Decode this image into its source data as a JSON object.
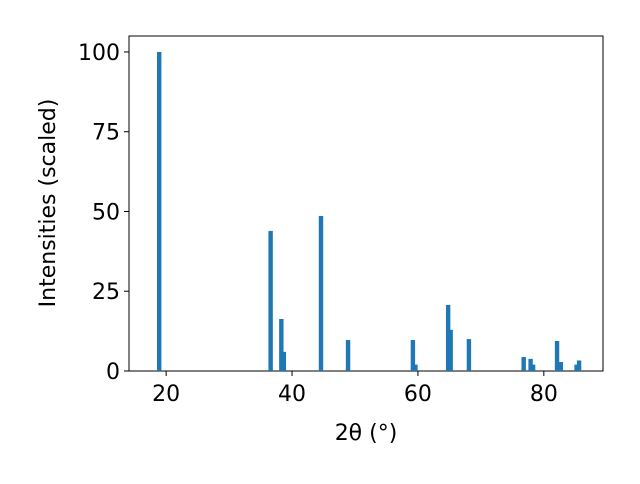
{
  "chart_data": {
    "type": "bar",
    "x": [
      18.9,
      36.6,
      38.3,
      38.7,
      44.6,
      48.9,
      59.2,
      59.6,
      64.8,
      65.2,
      68.1,
      76.8,
      77.9,
      78.3,
      82.1,
      82.7,
      85.2,
      85.6
    ],
    "values": [
      100,
      43.9,
      16.3,
      6,
      48.6,
      9.7,
      9.7,
      2,
      20.7,
      12.9,
      10,
      4.4,
      3.8,
      2,
      9.4,
      2.8,
      2,
      3.3
    ],
    "color": "#1f77b4",
    "xlabel": "2θ (°)",
    "ylabel": "Intensities (scaled)",
    "xlim": [
      14.1,
      89.4
    ],
    "ylim": [
      0,
      105
    ],
    "xticks": [
      20,
      40,
      60,
      80
    ],
    "yticks": [
      0,
      25,
      50,
      75,
      100
    ],
    "grid": false
  }
}
